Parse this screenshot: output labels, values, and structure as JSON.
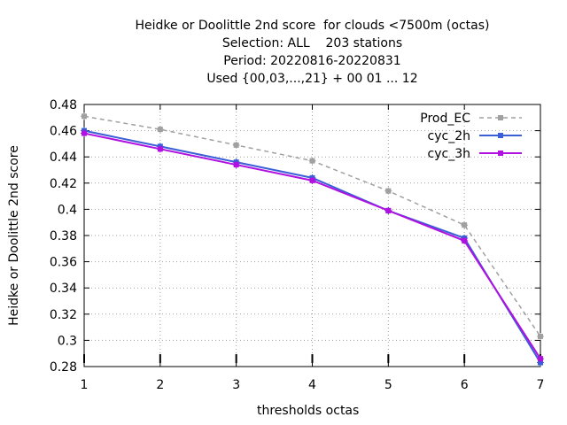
{
  "chart_data": {
    "type": "line",
    "title": [
      "Heidke or Doolittle 2nd score  for clouds <7500m (octas)",
      "Selection: ALL    203 stations",
      "Period: 20220816-20220831",
      "Used {00,03,...,21} + 00 01 ... 12"
    ],
    "xlabel": "thresholds octas",
    "ylabel": "Heidke or Doolittle 2nd score",
    "xlim": [
      1,
      7
    ],
    "ylim": [
      0.28,
      0.48
    ],
    "x_ticks": [
      "1",
      "2",
      "3",
      "4",
      "5",
      "6",
      "7"
    ],
    "y_ticks": [
      "0.28",
      "0.3",
      "0.32",
      "0.34",
      "0.36",
      "0.38",
      "0.4",
      "0.42",
      "0.44",
      "0.46",
      "0.48"
    ],
    "grid": true,
    "legend_position": "top-right",
    "x": [
      1,
      2,
      3,
      4,
      5,
      6,
      7
    ],
    "series": [
      {
        "name": "Prod_EC",
        "color": "#a0a0a0",
        "dashed": true,
        "values": [
          0.471,
          0.461,
          0.449,
          0.437,
          0.414,
          0.388,
          0.303
        ]
      },
      {
        "name": "cyc_2h",
        "color": "#3b5fd6",
        "dashed": false,
        "values": [
          0.46,
          0.448,
          0.436,
          0.424,
          0.399,
          0.378,
          0.283
        ]
      },
      {
        "name": "cyc_3h",
        "color": "#b010e0",
        "dashed": false,
        "values": [
          0.458,
          0.446,
          0.434,
          0.422,
          0.399,
          0.376,
          0.286
        ]
      }
    ]
  }
}
